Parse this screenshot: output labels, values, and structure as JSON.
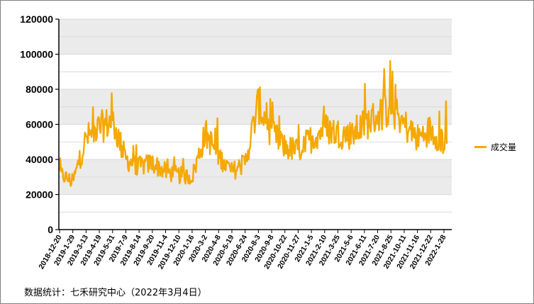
{
  "source_note": "数据统计：七禾研究中心（2022年3月4日）",
  "colors": {
    "series": "#F5A800",
    "band": "#EBEBEB",
    "grid": "#D9D9D9",
    "axis": "#000000"
  },
  "chart_data": {
    "type": "line",
    "title": "",
    "xlabel": "",
    "ylabel": "",
    "ylim": [
      0,
      120000
    ],
    "yticks": [
      0,
      20000,
      40000,
      60000,
      80000,
      100000,
      120000
    ],
    "legend_position": "right",
    "grid": true,
    "series": [
      {
        "name": "成交量",
        "x": [
          "2018-12-20",
          "2019-1-29",
          "2019-3-13",
          "2019-4-19",
          "2019-5-31",
          "2019-7-9",
          "2019-8-14",
          "2019-9-20",
          "2019-11-4",
          "2019-12-10",
          "2020-1-16",
          "2020-3-2",
          "2020-4-8",
          "2020-5-19",
          "2020-6-24",
          "2020-8-3",
          "2020-9-8",
          "2020-10-22",
          "2020-11-27",
          "2021-1-5",
          "2021-2-10",
          "2021-3-25",
          "2021-5-6",
          "2021-6-11",
          "2021-7-20",
          "2021-8-25",
          "2021-10-11",
          "2021-11-16",
          "2021-12-22",
          "2022-1-28"
        ],
        "values": [
          32000,
          27000,
          52000,
          58000,
          62000,
          40000,
          36000,
          38000,
          33000,
          31000,
          30000,
          55000,
          42000,
          33000,
          38000,
          72000,
          55000,
          47000,
          45000,
          52000,
          58000,
          55000,
          54000,
          60000,
          65000,
          70000,
          60000,
          52000,
          57000,
          50000
        ]
      }
    ],
    "x_tick_labels": [
      "2018-12-20",
      "2019-1-29",
      "2019-3-13",
      "2019-4-19",
      "2019-5-31",
      "2019-7-9",
      "2019-8-14",
      "2019-9-20",
      "2019-11-4",
      "2019-12-10",
      "2020-1-16",
      "2020-3-2",
      "2020-4-8",
      "2020-5-19",
      "2020-6-24",
      "2020-8-3",
      "2020-9-8",
      "2020-10-22",
      "2020-11-27",
      "2021-1-5",
      "2021-2-10",
      "2021-3-25",
      "2021-5-6",
      "2021-6-11",
      "2021-7-20",
      "2021-8-25",
      "2021-10-11",
      "2021-11-16",
      "2021-12-22",
      "2022-1-28"
    ],
    "y_tick_labels": [
      "0",
      "20000",
      "40000",
      "60000",
      "80000",
      "100000",
      "120000"
    ]
  }
}
